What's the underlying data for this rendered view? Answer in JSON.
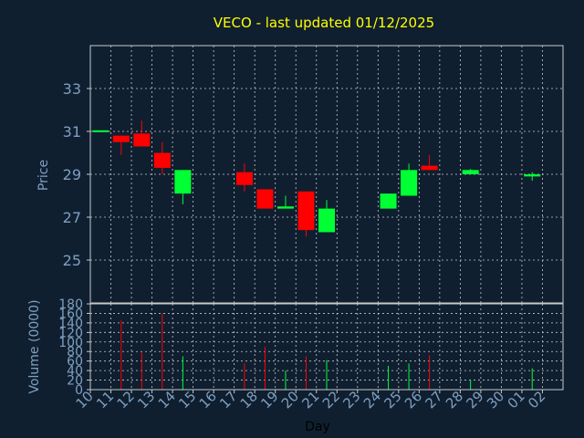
{
  "chart_data": [
    {
      "type": "candlestick",
      "title": "VECO - last updated 01/12/2025",
      "ylabel": "Price",
      "xlabel": "Day",
      "ylim": [
        23.0,
        35.0
      ],
      "yticks": [
        25,
        27,
        29,
        31,
        33
      ],
      "x": [
        "10",
        "11",
        "12",
        "13",
        "14",
        "15",
        "16",
        "17",
        "18",
        "19",
        "20",
        "21",
        "22",
        "23",
        "24",
        "25",
        "26",
        "27",
        "28",
        "29",
        "30",
        "01",
        "02"
      ],
      "candles": [
        {
          "day": "10",
          "open": 31.05,
          "high": 31.05,
          "low": 31.0,
          "close": 31.0,
          "dir": "up"
        },
        {
          "day": "11",
          "open": 30.8,
          "high": 30.8,
          "low": 29.9,
          "close": 30.5,
          "dir": "down"
        },
        {
          "day": "12",
          "open": 30.9,
          "high": 31.5,
          "low": 30.3,
          "close": 30.3,
          "dir": "down"
        },
        {
          "day": "13",
          "open": 30.0,
          "high": 30.5,
          "low": 29.0,
          "close": 29.3,
          "dir": "down"
        },
        {
          "day": "14",
          "open": 28.1,
          "high": 29.2,
          "low": 27.6,
          "close": 29.2,
          "dir": "up"
        },
        {
          "day": "17",
          "open": 29.1,
          "high": 29.5,
          "low": 28.2,
          "close": 28.5,
          "dir": "down"
        },
        {
          "day": "18",
          "open": 28.3,
          "high": 28.3,
          "low": 27.4,
          "close": 27.4,
          "dir": "down"
        },
        {
          "day": "19",
          "open": 27.4,
          "high": 28.0,
          "low": 27.4,
          "close": 27.5,
          "dir": "up"
        },
        {
          "day": "20",
          "open": 28.2,
          "high": 28.2,
          "low": 26.1,
          "close": 26.4,
          "dir": "down"
        },
        {
          "day": "21",
          "open": 26.3,
          "high": 27.8,
          "low": 26.3,
          "close": 27.4,
          "dir": "up"
        },
        {
          "day": "24",
          "open": 27.4,
          "high": 28.1,
          "low": 27.4,
          "close": 28.1,
          "dir": "up"
        },
        {
          "day": "25",
          "open": 28.0,
          "high": 29.5,
          "low": 28.0,
          "close": 29.2,
          "dir": "up"
        },
        {
          "day": "26",
          "open": 29.4,
          "high": 29.9,
          "low": 29.2,
          "close": 29.2,
          "dir": "down"
        },
        {
          "day": "28",
          "open": 29.0,
          "high": 29.25,
          "low": 29.0,
          "close": 29.2,
          "dir": "up"
        },
        {
          "day": "01",
          "open": 28.9,
          "high": 29.1,
          "low": 28.7,
          "close": 29.0,
          "dir": "up"
        }
      ]
    },
    {
      "type": "bar",
      "ylabel": "Volume (0000)",
      "ylim": [
        0,
        180
      ],
      "yticks": [
        0,
        20,
        40,
        60,
        80,
        100,
        120,
        140,
        160,
        180
      ],
      "volumes": [
        {
          "day": "11",
          "value": 145,
          "dir": "down"
        },
        {
          "day": "12",
          "value": 78,
          "dir": "down"
        },
        {
          "day": "13",
          "value": 160,
          "dir": "down"
        },
        {
          "day": "14",
          "value": 70,
          "dir": "up"
        },
        {
          "day": "17",
          "value": 55,
          "dir": "down"
        },
        {
          "day": "18",
          "value": 90,
          "dir": "down"
        },
        {
          "day": "19",
          "value": 40,
          "dir": "up"
        },
        {
          "day": "20",
          "value": 70,
          "dir": "down"
        },
        {
          "day": "21",
          "value": 62,
          "dir": "up"
        },
        {
          "day": "24",
          "value": 50,
          "dir": "up"
        },
        {
          "day": "25",
          "value": 55,
          "dir": "up"
        },
        {
          "day": "26",
          "value": 72,
          "dir": "down"
        },
        {
          "day": "28",
          "value": 20,
          "dir": "up"
        },
        {
          "day": "01",
          "value": 45,
          "dir": "up"
        }
      ]
    }
  ],
  "colors": {
    "background": "#0f1f30",
    "up": "#00ff33",
    "down": "#ff0000",
    "title": "#ffff00",
    "axis_text": "#7f9fbf",
    "grid": "#c8c8c8"
  }
}
